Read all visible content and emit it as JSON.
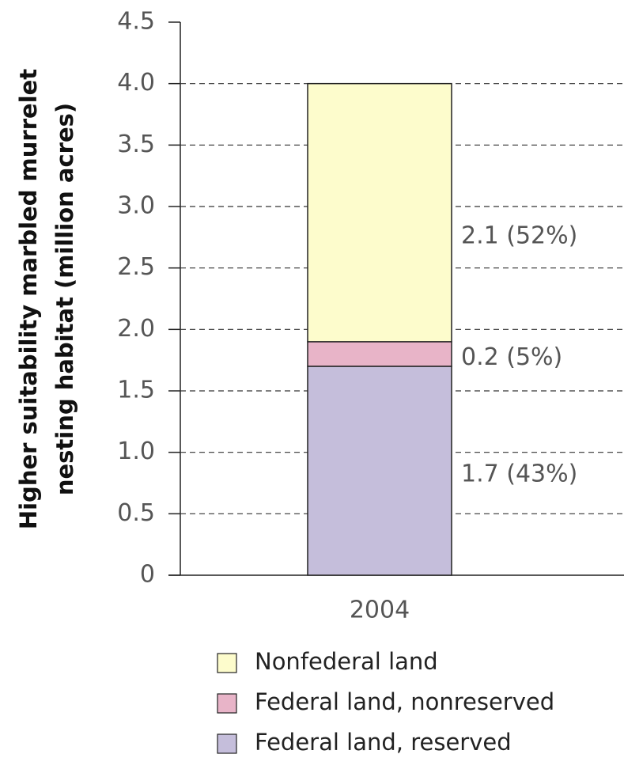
{
  "chart_data": {
    "type": "stacked_bar",
    "ylabel": [
      "Higher suitability marbled murrelet",
      "nesting habitat (million acres)"
    ],
    "categories": [
      "2004"
    ],
    "series": [
      {
        "name": "Federal land, reserved",
        "color": "#c5bedb",
        "values": [
          1.7
        ],
        "value_labels": [
          "1.7 (43%)"
        ]
      },
      {
        "name": "Federal land, nonreserved",
        "color": "#e8b4c8",
        "values": [
          0.2
        ],
        "value_labels": [
          "0.2 (5%)"
        ]
      },
      {
        "name": "Nonfederal land",
        "color": "#fdfccc",
        "values": [
          2.1
        ],
        "value_labels": [
          "2.1 (52%)"
        ]
      }
    ],
    "ylim": [
      0,
      4.5
    ],
    "yticks": [
      0,
      0.5,
      {
        "value": 1,
        "label": "1.0"
      },
      1.5,
      {
        "value": 2,
        "label": "2.0"
      },
      2.5,
      {
        "value": 3,
        "label": "3.0"
      },
      3.5,
      {
        "value": 4,
        "label": "4.0"
      },
      4.5
    ],
    "grid": true
  }
}
